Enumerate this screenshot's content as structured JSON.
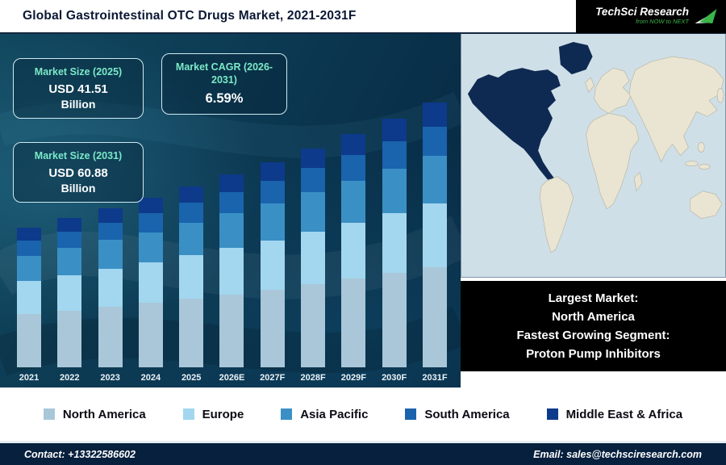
{
  "header": {
    "title": "Global Gastrointestinal OTC Drugs Market, 2021-2031F",
    "logo": {
      "name": "TechSci Research",
      "tagline": "from NOW to NEXT"
    }
  },
  "stat_boxes": [
    {
      "label": "Market Size (2025)",
      "value": "USD 41.51",
      "unit": "Billion"
    },
    {
      "label": "Market CAGR (2026-2031)",
      "value": "6.59%",
      "unit": ""
    },
    {
      "label": "Market Size (2031)",
      "value": "USD 60.88",
      "unit": "Billion"
    }
  ],
  "chart_data": {
    "type": "bar",
    "stacked": true,
    "title": "Global Gastrointestinal OTC Drugs Market, 2021-2031F",
    "categories": [
      "2021",
      "2022",
      "2023",
      "2024",
      "2025",
      "2026E",
      "2027F",
      "2028F",
      "2029F",
      "2030F",
      "2031F"
    ],
    "series": [
      {
        "name": "North America",
        "color": "#a9c7d8",
        "values": [
          12.2,
          13.0,
          13.9,
          14.8,
          15.8,
          16.8,
          17.9,
          19.1,
          20.4,
          21.7,
          23.1
        ]
      },
      {
        "name": "Europe",
        "color": "#a3d6ef",
        "values": [
          7.7,
          8.2,
          8.8,
          9.3,
          10.0,
          10.6,
          11.3,
          12.1,
          12.9,
          13.7,
          14.6
        ]
      },
      {
        "name": "Asia Pacific",
        "color": "#3a90c5",
        "values": [
          5.8,
          6.2,
          6.6,
          7.0,
          7.5,
          8.0,
          8.5,
          9.1,
          9.6,
          10.3,
          11.0
        ]
      },
      {
        "name": "South America",
        "color": "#1a63ad",
        "values": [
          3.5,
          3.8,
          4.0,
          4.3,
          4.6,
          4.9,
          5.2,
          5.5,
          5.9,
          6.3,
          6.7
        ]
      },
      {
        "name": "Middle East & Africa",
        "color": "#0d3a8a",
        "values": [
          2.9,
          3.1,
          3.3,
          3.5,
          3.7,
          4.0,
          4.2,
          4.5,
          4.8,
          5.1,
          5.5
        ]
      }
    ],
    "ylim": [
      0,
      65
    ],
    "legend_position": "bottom",
    "grid": false,
    "units": "USD Billion"
  },
  "map": {
    "highlight_region": "North America",
    "water_color": "#cfdfe8",
    "land_color": "#e9e5d2",
    "land_stroke": "#b4b09c",
    "highlight_color": "#0e2a52"
  },
  "map_callout": {
    "lines": [
      "Largest Market:",
      "North America",
      "Fastest Growing Segment:",
      "Proton Pump Inhibitors"
    ]
  },
  "footer": {
    "contact": "Contact: +13322586602",
    "email": "Email: sales@techsciresearch.com"
  },
  "colors": {
    "panel_dark_teal": "#0d3c55",
    "footer_navy": "#07203d",
    "stat_label_aqua": "#7ce9c9",
    "logo_green": "#3ab54a"
  }
}
